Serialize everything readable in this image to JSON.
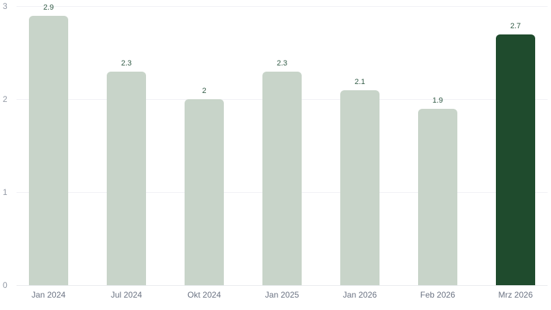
{
  "chart_data": {
    "type": "bar",
    "title": "",
    "xlabel": "",
    "ylabel": "",
    "categories": [
      "Jan 2024",
      "Jul 2024",
      "Okt 2024",
      "Jan 2025",
      "Jan 2026",
      "Feb 2026",
      "Mrz 2026"
    ],
    "values": [
      2.9,
      2.3,
      2,
      2.3,
      2.1,
      1.9,
      2.7
    ],
    "value_labels": [
      "2.9",
      "2.3",
      "2",
      "2.3",
      "2.1",
      "1.9",
      "2.7"
    ],
    "y_ticks": [
      0,
      1,
      2,
      3
    ],
    "y_tick_labels": [
      "0",
      "1",
      "2",
      "3"
    ],
    "ylim": [
      0,
      3
    ],
    "grid": true,
    "legend": "none",
    "highlight_index": 6,
    "colors": {
      "bar_default": "#c8d4c9",
      "bar_highlight": "#1f4b2d",
      "value_label": "#315a45",
      "y_axis_label": "#9198a4",
      "x_axis_label": "#6a7282",
      "gridline": "#f0f1f4",
      "baseline": "#e9ebee",
      "background": "#ffffff"
    }
  }
}
